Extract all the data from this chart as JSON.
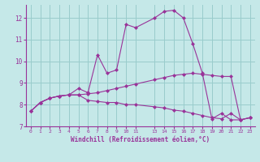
{
  "xlabel": "Windchill (Refroidissement éolien,°C)",
  "xlim": [
    -0.5,
    23.5
  ],
  "ylim": [
    7.0,
    12.6
  ],
  "yticks": [
    7,
    8,
    9,
    10,
    11,
    12
  ],
  "xticks": [
    0,
    1,
    2,
    3,
    4,
    5,
    6,
    7,
    8,
    9,
    10,
    11,
    13,
    14,
    15,
    16,
    17,
    18,
    19,
    20,
    21,
    22,
    23
  ],
  "xtick_labels": [
    "0",
    "1",
    "2",
    "3",
    "4",
    "5",
    "6",
    "7",
    "8",
    "9",
    "10",
    "11",
    "13",
    "14",
    "15",
    "16",
    "17",
    "18",
    "19",
    "20",
    "21",
    "22",
    "23"
  ],
  "background_color": "#c5e8e8",
  "line_color": "#993399",
  "grid_color": "#99cccc",
  "line1_x": [
    0,
    1,
    2,
    3,
    4,
    5,
    6,
    7,
    8,
    9,
    10,
    11,
    13,
    14,
    15,
    16,
    17,
    18,
    19,
    20,
    21,
    22,
    23
  ],
  "line1_y": [
    7.7,
    8.1,
    8.3,
    8.4,
    8.45,
    8.45,
    8.2,
    8.15,
    8.1,
    8.1,
    8.0,
    8.0,
    7.9,
    7.85,
    7.75,
    7.7,
    7.6,
    7.5,
    7.4,
    7.35,
    7.6,
    7.3,
    7.4
  ],
  "line2_x": [
    0,
    1,
    2,
    3,
    4,
    5,
    6,
    7,
    8,
    9,
    10,
    11,
    13,
    14,
    15,
    16,
    17,
    18,
    19,
    20,
    21,
    22,
    23
  ],
  "line2_y": [
    7.7,
    8.1,
    8.3,
    8.4,
    8.45,
    8.45,
    8.5,
    8.55,
    8.65,
    8.75,
    8.85,
    8.95,
    9.15,
    9.25,
    9.35,
    9.4,
    9.45,
    9.4,
    9.35,
    9.3,
    9.3,
    7.3,
    7.4
  ],
  "line3_x": [
    0,
    1,
    2,
    3,
    4,
    5,
    6,
    7,
    8,
    9,
    10,
    11,
    13,
    14,
    15,
    16,
    17,
    18,
    19,
    20,
    21,
    22,
    23
  ],
  "line3_y": [
    7.7,
    8.1,
    8.3,
    8.4,
    8.45,
    8.75,
    8.55,
    10.3,
    9.45,
    9.6,
    11.7,
    11.55,
    12.0,
    12.3,
    12.35,
    12.0,
    10.8,
    9.45,
    7.35,
    7.6,
    7.3,
    7.3,
    7.4
  ]
}
